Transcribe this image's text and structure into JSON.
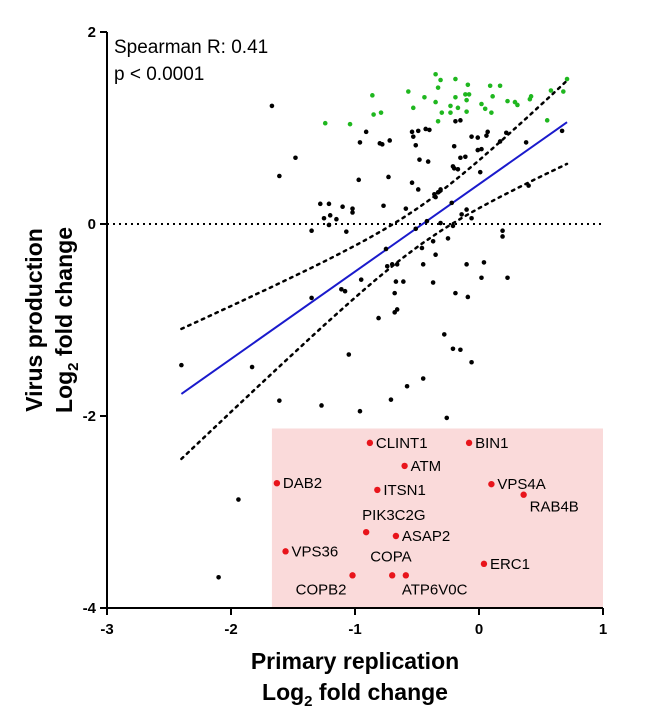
{
  "chart_data": {
    "type": "scatter",
    "xlabel_line1": "Primary replication",
    "xlabel_line2_pre": "Log",
    "xlabel_line2_sub": "2",
    "xlabel_line2_post": " fold change",
    "ylabel_line1": "Virus production",
    "ylabel_line2_pre": "Log",
    "ylabel_line2_sub": "2",
    "ylabel_line2_post": " fold change",
    "xlim": [
      -3,
      1
    ],
    "ylim": [
      -4,
      2
    ],
    "xticks": [
      "-3",
      "-2",
      "-1",
      "0",
      "1"
    ],
    "yticks": [
      "-4",
      "-2",
      "0",
      "2"
    ],
    "annotation_line1": "Spearman R: 0.41",
    "annotation_line2": "p < 0.0001",
    "reference_line_y": 0,
    "fit_line": {
      "x": [
        -2.4,
        0.71
      ],
      "y": [
        -1.77,
        1.06
      ]
    },
    "highlight_region": {
      "x": [
        -1.67,
        1
      ],
      "y": [
        -4,
        -2.13
      ],
      "color": "#fadada"
    },
    "colors": {
      "black": "#000000",
      "green": "#1fb71f",
      "red": "#e8141b",
      "fit": "#1a1acc"
    },
    "series": [
      {
        "color": "green",
        "points": [
          [
            -1.24,
            1.05
          ],
          [
            -1.04,
            1.04
          ],
          [
            -0.86,
            1.34
          ],
          [
            -0.85,
            1.14
          ],
          [
            -0.79,
            1.16
          ],
          [
            -0.57,
            1.38
          ],
          [
            -0.53,
            1.21
          ],
          [
            -0.44,
            1.32
          ],
          [
            -0.35,
            1.56
          ],
          [
            -0.35,
            1.27
          ],
          [
            -0.33,
            1.07
          ],
          [
            -0.3,
            1.16
          ],
          [
            -0.33,
            1.42
          ],
          [
            -0.31,
            1.5
          ],
          [
            -0.23,
            1.23
          ],
          [
            -0.23,
            1.16
          ],
          [
            -0.19,
            1.32
          ],
          [
            -0.19,
            1.51
          ],
          [
            -0.17,
            1.21
          ],
          [
            -0.11,
            1.35
          ],
          [
            -0.1,
            1.17
          ],
          [
            -0.1,
            1.29
          ],
          [
            -0.09,
            1.45
          ],
          [
            -0.08,
            1.35
          ],
          [
            0.02,
            1.25
          ],
          [
            0.05,
            1.2
          ],
          [
            0.09,
            1.44
          ],
          [
            0.11,
            1.33
          ],
          [
            0.1,
            1.16
          ],
          [
            0.17,
            1.44
          ],
          [
            0.23,
            1.28
          ],
          [
            0.29,
            1.27
          ],
          [
            0.31,
            1.24
          ],
          [
            0.41,
            1.3
          ],
          [
            0.42,
            1.33
          ],
          [
            0.55,
            1.08
          ],
          [
            0.58,
            1.39
          ],
          [
            0.68,
            1.38
          ],
          [
            0.71,
            1.51
          ]
        ]
      },
      {
        "color": "black",
        "points": [
          [
            -1.67,
            1.23
          ],
          [
            -1.48,
            0.69
          ],
          [
            -1.61,
            0.5
          ],
          [
            -1.28,
            0.21
          ],
          [
            -1.21,
            0.21
          ],
          [
            -1.1,
            0.18
          ],
          [
            -1.02,
            0.16
          ],
          [
            -1.02,
            0.12
          ],
          [
            -1.25,
            0.06
          ],
          [
            -1.2,
            0.09
          ],
          [
            -1.15,
            0.05
          ],
          [
            -1.21,
            -0.01
          ],
          [
            -1.35,
            -0.07
          ],
          [
            -0.96,
            0.85
          ],
          [
            -0.91,
            0.96
          ],
          [
            -0.8,
            0.84
          ],
          [
            -0.78,
            0.83
          ],
          [
            -0.72,
            0.87
          ],
          [
            -0.97,
            0.46
          ],
          [
            -0.73,
            0.49
          ],
          [
            -0.59,
            0.16
          ],
          [
            -0.54,
            0.43
          ],
          [
            -0.48,
            0.67
          ],
          [
            -0.54,
            0.96
          ],
          [
            -0.53,
            0.91
          ],
          [
            -0.51,
            0.82
          ],
          [
            -0.49,
            0.97
          ],
          [
            -0.43,
            0.99
          ],
          [
            -0.41,
            0.65
          ],
          [
            -0.49,
            0.36
          ],
          [
            -0.33,
            0.33
          ],
          [
            -0.36,
            0.31
          ],
          [
            -0.35,
            0.28
          ],
          [
            -0.31,
            0.36
          ],
          [
            -0.22,
            0.22
          ],
          [
            -0.21,
            0.6
          ],
          [
            -0.2,
            0.58
          ],
          [
            -0.2,
            0.81
          ],
          [
            -0.15,
            1.08
          ],
          [
            -0.15,
            0.69
          ],
          [
            -0.17,
            0.57
          ],
          [
            -0.14,
            0.1
          ],
          [
            -0.11,
            0.7
          ],
          [
            -0.06,
            0.91
          ],
          [
            -0.01,
            0.9
          ],
          [
            -0.01,
            0.77
          ],
          [
            0.02,
            0.78
          ],
          [
            0.07,
            0.96
          ],
          [
            0.06,
            0.92
          ],
          [
            0.22,
            0.95
          ],
          [
            0.38,
            0.85
          ],
          [
            0.17,
            0.86
          ],
          [
            -0.4,
            0.98
          ],
          [
            -0.19,
            1.07
          ],
          [
            0.01,
            0.54
          ],
          [
            -0.1,
            0.15
          ],
          [
            -0.06,
            0.06
          ],
          [
            -0.77,
            0.19
          ],
          [
            -1.35,
            -0.77
          ],
          [
            -1.83,
            -1.49
          ],
          [
            -2.4,
            -1.47
          ],
          [
            -1.11,
            -0.68
          ],
          [
            -1.08,
            -0.7
          ],
          [
            -0.81,
            -0.98
          ],
          [
            -1.05,
            -1.36
          ],
          [
            -1.61,
            -1.84
          ],
          [
            -1.27,
            -1.89
          ],
          [
            -0.96,
            -1.95
          ],
          [
            -0.71,
            -1.83
          ],
          [
            -0.58,
            -1.69
          ],
          [
            -0.45,
            -1.61
          ],
          [
            -0.26,
            -2.02
          ],
          [
            -0.28,
            -1.15
          ],
          [
            -0.21,
            -1.3
          ],
          [
            -0.15,
            -1.31
          ],
          [
            -0.06,
            -1.44
          ],
          [
            -0.19,
            -0.72
          ],
          [
            -0.09,
            -0.76
          ],
          [
            -0.1,
            -0.42
          ],
          [
            0.02,
            -0.56
          ],
          [
            -0.35,
            -0.32
          ],
          [
            -0.46,
            -0.25
          ],
          [
            -0.37,
            -0.18
          ],
          [
            -0.37,
            -0.61
          ],
          [
            -0.67,
            -0.6
          ],
          [
            -0.95,
            -0.58
          ],
          [
            -0.68,
            -0.92
          ],
          [
            -0.66,
            -0.89
          ],
          [
            -0.68,
            -0.72
          ],
          [
            -0.66,
            -0.42
          ],
          [
            -0.61,
            -0.6
          ],
          [
            -0.7,
            -0.42
          ],
          [
            -0.75,
            -0.26
          ],
          [
            -0.74,
            -0.44
          ],
          [
            -0.45,
            -0.42
          ],
          [
            -0.25,
            -0.15
          ],
          [
            0.19,
            -0.07
          ],
          [
            0.19,
            -0.13
          ],
          [
            0.23,
            -0.56
          ],
          [
            0.04,
            -0.4
          ],
          [
            -0.51,
            -0.05
          ],
          [
            -1.07,
            -0.08
          ],
          [
            -0.21,
            -0.02
          ],
          [
            0.67,
            0.97
          ],
          [
            0.4,
            0.4
          ],
          [
            -2.1,
            -3.68
          ],
          [
            -1.94,
            -2.87
          ],
          [
            -0.42,
            0.03
          ],
          [
            -0.31,
            0.01
          ]
        ]
      }
    ],
    "labeled_points": [
      {
        "label": "CLINT1",
        "x": -0.88,
        "y": -2.28
      },
      {
        "label": "BIN1",
        "x": -0.08,
        "y": -2.28
      },
      {
        "label": "ATM",
        "x": -0.6,
        "y": -2.52
      },
      {
        "label": "DAB2",
        "x": -1.63,
        "y": -2.7
      },
      {
        "label": "ITSN1",
        "x": -0.82,
        "y": -2.77
      },
      {
        "label": "VPS4A",
        "x": 0.1,
        "y": -2.71
      },
      {
        "label": "RAB4B",
        "x": 0.36,
        "y": -2.82
      },
      {
        "label": "PIK3C2G",
        "x": -0.91,
        "y": -3.21
      },
      {
        "label": "ASAP2",
        "x": -0.67,
        "y": -3.25
      },
      {
        "label": "VPS36",
        "x": -1.56,
        "y": -3.41
      },
      {
        "label": "ERC1",
        "x": 0.04,
        "y": -3.54
      },
      {
        "label": "COPA",
        "x": -0.7,
        "y": -3.66
      },
      {
        "label": "ATP6V0C",
        "x": -0.59,
        "y": -3.66
      },
      {
        "label": "COPB2",
        "x": -1.02,
        "y": -3.66
      }
    ]
  }
}
